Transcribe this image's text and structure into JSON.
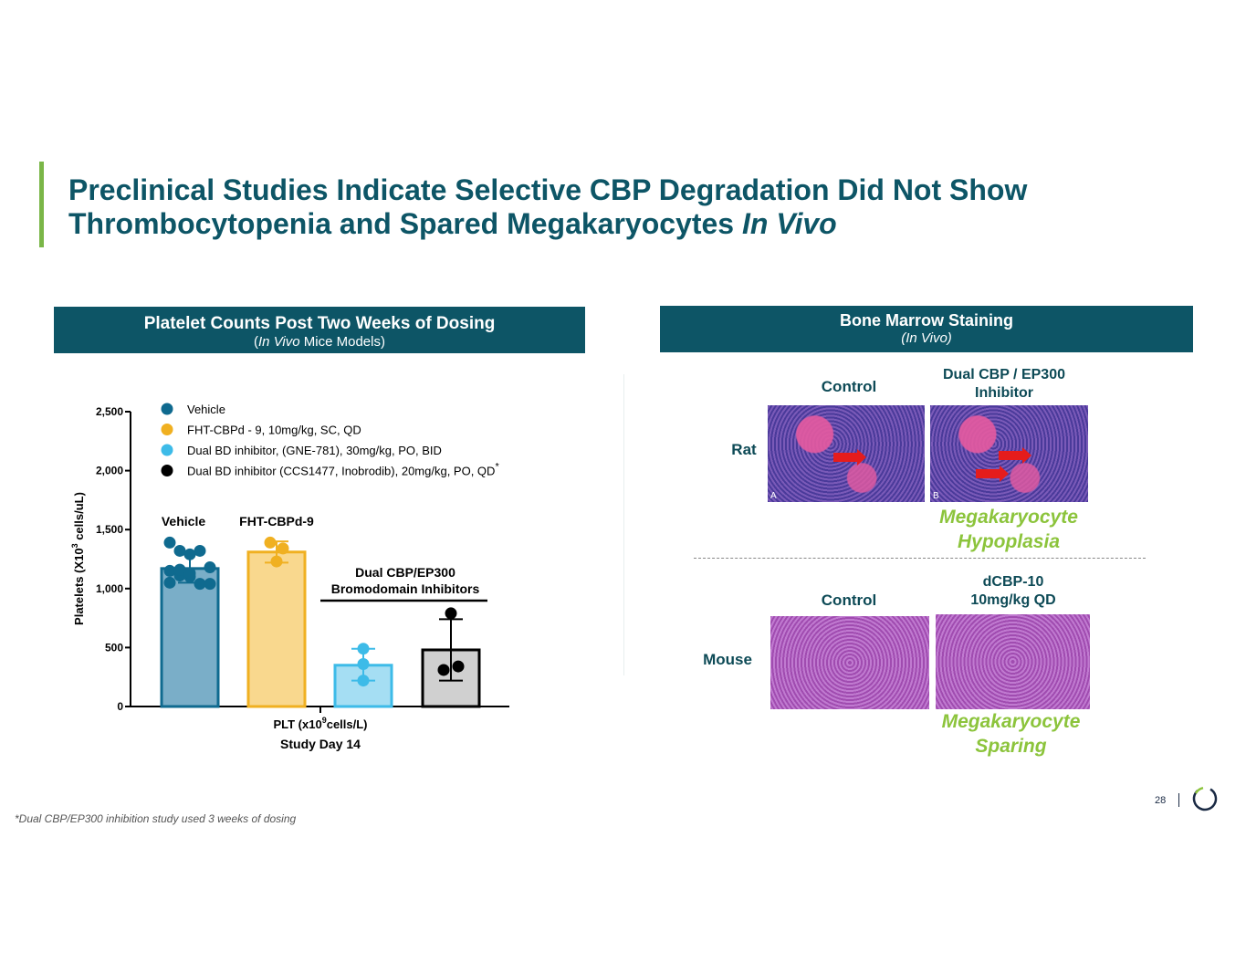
{
  "title": {
    "line1": "Preclinical Studies Indicate Selective CBP Degradation Did Not Show",
    "line2": "Thrombocytopenia and Spared Megakaryocytes ",
    "line2_italic": "In Vivo"
  },
  "left_panel": {
    "title": "Platelet Counts Post Two Weeks of Dosing",
    "subtitle_italic": "In Vivo",
    "subtitle_rest": " Mice Models)",
    "subtitle_open": "("
  },
  "right_panel": {
    "title": "Bone Marrow Staining",
    "subtitle": "(In Vivo)"
  },
  "chart_data": {
    "type": "bar",
    "ylabel": "Platelets  (X10^3 cells/uL)",
    "ylabel_main": "Platelets  (X10",
    "ylabel_sup": "3",
    "ylabel_end": " cells/uL)",
    "xlabel_main": "PLT (x10",
    "xlabel_sup": "9",
    "xlabel_end": "cells/L)",
    "xlabel2": "Study Day 14",
    "ylim": [
      0,
      2500
    ],
    "yticks": [
      0,
      500,
      1000,
      1500,
      2000,
      2500
    ],
    "ytick_labels": [
      "0",
      "500",
      "1,000",
      "1,500",
      "2,000",
      "2,500"
    ],
    "legend_position": "top",
    "series": [
      {
        "name": "Vehicle",
        "color": "#0f6a8f",
        "fill": "#7aaec8",
        "mean": 1170,
        "err": [
          1050,
          1290
        ],
        "points": [
          1390,
          1320,
          1290,
          1320,
          1180,
          1150,
          1110,
          1100,
          1040,
          1040,
          1050,
          1160,
          1130
        ]
      },
      {
        "name": "FHT-CBPd - 9, 10mg/kg, SC, QD",
        "color": "#f0b021",
        "fill": "#f9d88e",
        "mean": 1310,
        "err": [
          1220,
          1400
        ],
        "points": [
          1390,
          1340,
          1230
        ]
      },
      {
        "name": "Dual BD inhibitor, (GNE-781), 30mg/kg, PO, BID",
        "color": "#3dbbe8",
        "fill": "#a5def3",
        "mean": 350,
        "err": [
          220,
          490
        ],
        "points": [
          490,
          360,
          220
        ]
      },
      {
        "name": "Dual BD inhibitor  (CCS1477, Inobrodib), 20mg/kg, PO, QD",
        "name_sup": "*",
        "color": "#000000",
        "fill": "#d0d0d0",
        "mean": 480,
        "err": [
          220,
          740
        ],
        "points": [
          790,
          310,
          340
        ]
      }
    ],
    "annotations": {
      "vehicle": "Vehicle",
      "fht": "FHT-CBPd-9",
      "dual_line1": "Dual CBP/EP300",
      "dual_line2": "Bromodomain Inhibitors"
    }
  },
  "staining": {
    "rat_label": "Rat",
    "mouse_label": "Mouse",
    "rat_control": "Control",
    "rat_treated_1": "Dual CBP / EP300",
    "rat_treated_2": "Inhibitor",
    "mouse_control": "Control",
    "mouse_treated_1": "dCBP-10",
    "mouse_treated_2": "10mg/kg QD",
    "rat_result_1": "Megakaryocyte",
    "rat_result_2": "Hypoplasia",
    "mouse_result_1": "Megakaryocyte",
    "mouse_result_2": "Sparing",
    "panel_a": "A",
    "panel_b": "B"
  },
  "footnote": "*Dual CBP/EP300 inhibition study used 3 weeks of dosing",
  "page_number": "28",
  "colors": {
    "brand": "#0d5566",
    "accent": "#7ab648",
    "result_text": "#8cc43c"
  }
}
